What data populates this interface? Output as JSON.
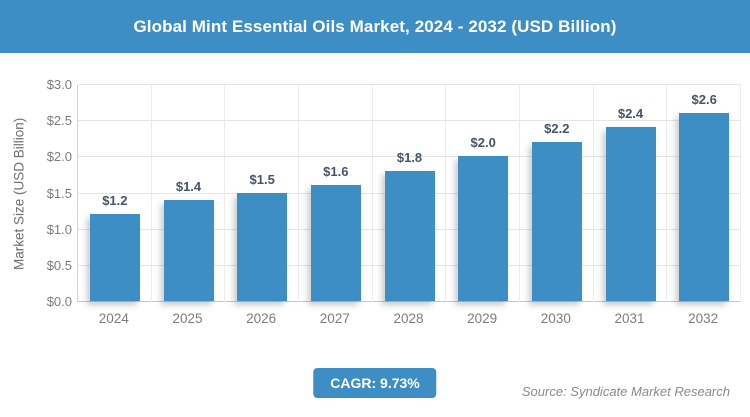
{
  "header": {
    "title": "Global Mint Essential Oils Market, 2024 - 2032 (USD Billion)"
  },
  "chart_data": {
    "type": "bar",
    "title": "Global Mint Essential Oils Market, 2024 - 2032 (USD Billion)",
    "categories": [
      "2024",
      "2025",
      "2026",
      "2027",
      "2028",
      "2029",
      "2030",
      "2031",
      "2032"
    ],
    "values": [
      1.2,
      1.4,
      1.5,
      1.6,
      1.8,
      2.0,
      2.2,
      2.4,
      2.6
    ],
    "data_labels": [
      "$1.2",
      "$1.4",
      "$1.5",
      "$1.6",
      "$1.8",
      "$2.0",
      "$2.2",
      "$2.4",
      "$2.6"
    ],
    "xlabel": "",
    "ylabel": "Market Size (USD Billion)",
    "ylim": [
      0,
      3.0
    ],
    "yticks": [
      "$0.0",
      "$0.5",
      "$1.0",
      "$1.5",
      "$2.0",
      "$2.5",
      "$3.0"
    ],
    "grid": true,
    "legend": "none",
    "bar_color": "#3E8EC6",
    "data_label_color": "#44546A"
  },
  "footer": {
    "cagr_label": "CAGR: 9.73%",
    "source": "Source: Syndicate Market Research"
  },
  "colors": {
    "accent_blue": "#3E8EC6",
    "axis_text": "#7C7C7C",
    "gridline": "#E5E5E5",
    "title_text": "#FFFFFF"
  }
}
